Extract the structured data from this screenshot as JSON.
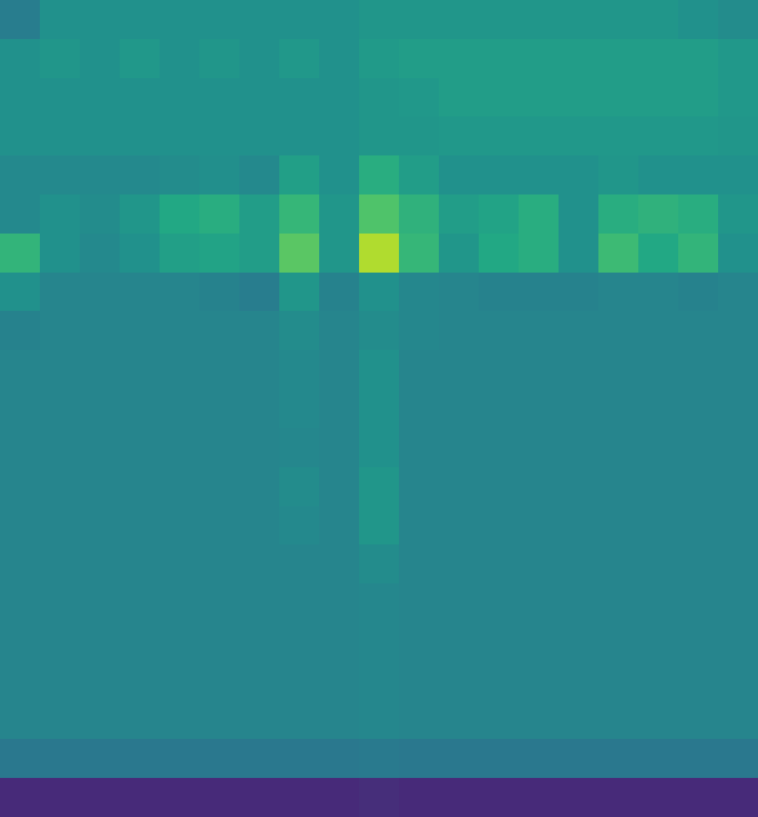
{
  "chart_data": {
    "type": "heatmap",
    "tick_labels": false,
    "color_range": [
      0,
      1
    ],
    "cells": [
      [
        0.42,
        0.5,
        0.5,
        0.5,
        0.5,
        0.5,
        0.5,
        0.5,
        0.5,
        0.52,
        0.52,
        0.52,
        0.52,
        0.52,
        0.52,
        0.52,
        0.52,
        0.5,
        0.48
      ],
      [
        0.5,
        0.52,
        0.5,
        0.53,
        0.5,
        0.52,
        0.5,
        0.53,
        0.5,
        0.54,
        0.55,
        0.55,
        0.55,
        0.55,
        0.55,
        0.55,
        0.55,
        0.55,
        0.53
      ],
      [
        0.5,
        0.5,
        0.5,
        0.5,
        0.5,
        0.5,
        0.5,
        0.5,
        0.5,
        0.52,
        0.53,
        0.55,
        0.55,
        0.55,
        0.55,
        0.55,
        0.55,
        0.55,
        0.53
      ],
      [
        0.5,
        0.5,
        0.5,
        0.5,
        0.5,
        0.5,
        0.5,
        0.5,
        0.5,
        0.52,
        0.52,
        0.53,
        0.53,
        0.53,
        0.53,
        0.53,
        0.53,
        0.53,
        0.52
      ],
      [
        0.47,
        0.47,
        0.47,
        0.47,
        0.48,
        0.49,
        0.47,
        0.56,
        0.5,
        0.62,
        0.55,
        0.5,
        0.5,
        0.5,
        0.5,
        0.52,
        0.5,
        0.5,
        0.5
      ],
      [
        0.47,
        0.5,
        0.48,
        0.52,
        0.6,
        0.62,
        0.55,
        0.66,
        0.52,
        0.72,
        0.64,
        0.55,
        0.58,
        0.62,
        0.5,
        0.62,
        0.64,
        0.62,
        0.52
      ],
      [
        0.65,
        0.5,
        0.47,
        0.5,
        0.56,
        0.58,
        0.55,
        0.74,
        0.52,
        0.88,
        0.66,
        0.52,
        0.6,
        0.62,
        0.5,
        0.68,
        0.6,
        0.65,
        0.5
      ],
      [
        0.5,
        0.45,
        0.45,
        0.45,
        0.45,
        0.44,
        0.42,
        0.52,
        0.44,
        0.5,
        0.46,
        0.45,
        0.44,
        0.44,
        0.44,
        0.45,
        0.45,
        0.44,
        0.45
      ],
      [
        0.44,
        0.45,
        0.45,
        0.45,
        0.45,
        0.45,
        0.45,
        0.48,
        0.45,
        0.48,
        0.46,
        0.45,
        0.45,
        0.45,
        0.45,
        0.45,
        0.45,
        0.45,
        0.45
      ],
      [
        0.45,
        0.45,
        0.45,
        0.45,
        0.45,
        0.45,
        0.45,
        0.47,
        0.45,
        0.5,
        0.45,
        0.45,
        0.45,
        0.45,
        0.45,
        0.45,
        0.45,
        0.45,
        0.45
      ],
      [
        0.45,
        0.45,
        0.45,
        0.45,
        0.45,
        0.45,
        0.45,
        0.47,
        0.45,
        0.5,
        0.45,
        0.45,
        0.45,
        0.45,
        0.45,
        0.45,
        0.45,
        0.45,
        0.45
      ],
      [
        0.45,
        0.45,
        0.45,
        0.45,
        0.45,
        0.45,
        0.45,
        0.46,
        0.45,
        0.5,
        0.45,
        0.45,
        0.45,
        0.45,
        0.45,
        0.45,
        0.45,
        0.45,
        0.45
      ],
      [
        0.45,
        0.45,
        0.45,
        0.45,
        0.45,
        0.45,
        0.45,
        0.48,
        0.45,
        0.52,
        0.45,
        0.45,
        0.45,
        0.45,
        0.45,
        0.45,
        0.45,
        0.45,
        0.45
      ],
      [
        0.45,
        0.45,
        0.45,
        0.45,
        0.45,
        0.45,
        0.45,
        0.47,
        0.45,
        0.52,
        0.45,
        0.45,
        0.45,
        0.45,
        0.45,
        0.45,
        0.45,
        0.45,
        0.45
      ],
      [
        0.45,
        0.45,
        0.45,
        0.45,
        0.45,
        0.45,
        0.45,
        0.45,
        0.45,
        0.48,
        0.45,
        0.45,
        0.45,
        0.45,
        0.45,
        0.45,
        0.45,
        0.45,
        0.45
      ],
      [
        0.45,
        0.45,
        0.45,
        0.45,
        0.45,
        0.45,
        0.45,
        0.45,
        0.45,
        0.46,
        0.45,
        0.45,
        0.45,
        0.45,
        0.45,
        0.45,
        0.45,
        0.45,
        0.45
      ],
      [
        0.45,
        0.45,
        0.45,
        0.45,
        0.45,
        0.45,
        0.45,
        0.45,
        0.45,
        0.46,
        0.45,
        0.45,
        0.45,
        0.45,
        0.45,
        0.45,
        0.45,
        0.45,
        0.45
      ],
      [
        0.45,
        0.45,
        0.45,
        0.45,
        0.45,
        0.45,
        0.45,
        0.45,
        0.45,
        0.46,
        0.45,
        0.45,
        0.45,
        0.45,
        0.45,
        0.45,
        0.45,
        0.45,
        0.45
      ],
      [
        0.45,
        0.45,
        0.45,
        0.45,
        0.45,
        0.45,
        0.45,
        0.45,
        0.45,
        0.46,
        0.45,
        0.45,
        0.45,
        0.45,
        0.45,
        0.45,
        0.45,
        0.45,
        0.45
      ],
      [
        0.4,
        0.4,
        0.4,
        0.4,
        0.4,
        0.4,
        0.4,
        0.4,
        0.4,
        0.41,
        0.4,
        0.4,
        0.4,
        0.4,
        0.4,
        0.4,
        0.4,
        0.4,
        0.4
      ],
      [
        0.12,
        0.12,
        0.12,
        0.12,
        0.12,
        0.12,
        0.12,
        0.12,
        0.12,
        0.13,
        0.12,
        0.12,
        0.12,
        0.12,
        0.12,
        0.12,
        0.12,
        0.12,
        0.12
      ]
    ]
  }
}
